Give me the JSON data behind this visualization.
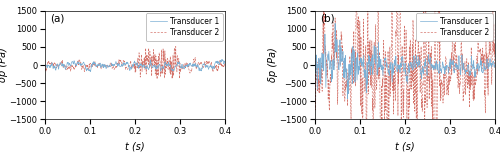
{
  "ylim": [
    -1500,
    1500
  ],
  "xlim": [
    0,
    0.4
  ],
  "xticks": [
    0,
    0.1,
    0.2,
    0.3,
    0.4
  ],
  "yticks": [
    -1500,
    -1000,
    -500,
    0,
    500,
    1000,
    1500
  ],
  "xlabel": "t (s)",
  "ylabel": "δp (Pa)",
  "label_t1": "Transducer 1",
  "label_t2": "Transducer 2",
  "color_t1": "#7bafd4",
  "color_t2": "#d4736a",
  "panel_a_label": "(a)",
  "panel_b_label": "(b)",
  "figsize": [
    5.0,
    1.53
  ],
  "dpi": 100,
  "n_points": 600
}
